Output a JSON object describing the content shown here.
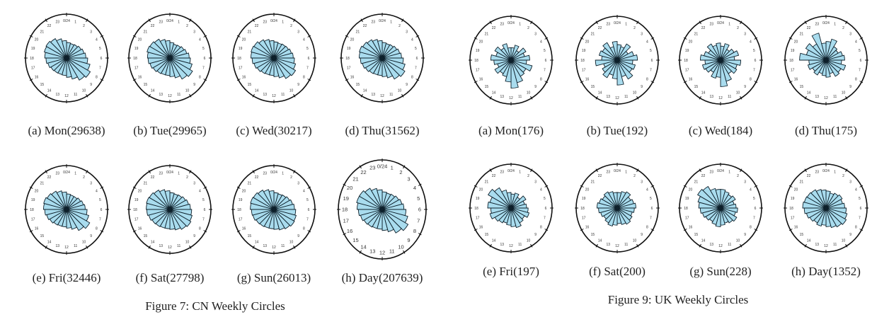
{
  "figures": [
    {
      "id": "cn",
      "caption": "Figure 7: CN Weekly Circles",
      "panels": [
        {
          "label": "(a) Mon(29638)"
        },
        {
          "label": "(b) Tue(29965)"
        },
        {
          "label": "(c) Wed(30217)"
        },
        {
          "label": "(d) Thu(31562)"
        },
        {
          "label": "(e) Fri(32446)"
        },
        {
          "label": "(f) Sat(27798)"
        },
        {
          "label": "(g) Sun(26013)"
        },
        {
          "label": "(h) Day(207639)"
        }
      ]
    },
    {
      "id": "uk",
      "caption": "Figure 9: UK Weekly Circles",
      "panels": [
        {
          "label": "(a) Mon(176)"
        },
        {
          "label": "(b) Tue(192)"
        },
        {
          "label": "(c) Wed(184)"
        },
        {
          "label": "(d) Thu(175)"
        },
        {
          "label": "(e) Fri(197)"
        },
        {
          "label": "(f) Sat(200)"
        },
        {
          "label": "(g) Sun(228)"
        },
        {
          "label": "(h) Day(1352)"
        }
      ]
    }
  ],
  "chart_data": [
    {
      "type": "rose",
      "figure": "cn",
      "hour_labels": [
        "0/24",
        "1",
        "2",
        "3",
        "4",
        "5",
        "6",
        "7",
        "8",
        "9",
        "10",
        "11",
        "12",
        "13",
        "14",
        "15",
        "16",
        "17",
        "18",
        "19",
        "20",
        "21",
        "22",
        "23"
      ],
      "bar_color": "#a9dcee",
      "series": [
        {
          "name": "Mon",
          "values": [
            0.5,
            0.48,
            0.5,
            0.54,
            0.58,
            0.62,
            0.68,
            0.78,
            0.88,
            0.82,
            0.7,
            0.62,
            0.56,
            0.55,
            0.56,
            0.58,
            0.62,
            0.66,
            0.7,
            0.74,
            0.76,
            0.72,
            0.64,
            0.56
          ]
        },
        {
          "name": "Tue",
          "values": [
            0.5,
            0.46,
            0.48,
            0.52,
            0.56,
            0.62,
            0.66,
            0.74,
            0.84,
            0.78,
            0.66,
            0.6,
            0.56,
            0.56,
            0.58,
            0.62,
            0.66,
            0.7,
            0.72,
            0.76,
            0.74,
            0.7,
            0.62,
            0.56
          ]
        },
        {
          "name": "Wed",
          "values": [
            0.52,
            0.5,
            0.52,
            0.54,
            0.58,
            0.62,
            0.66,
            0.72,
            0.8,
            0.76,
            0.66,
            0.6,
            0.56,
            0.56,
            0.58,
            0.62,
            0.66,
            0.7,
            0.74,
            0.76,
            0.74,
            0.68,
            0.62,
            0.56
          ]
        },
        {
          "name": "Thu",
          "values": [
            0.5,
            0.48,
            0.5,
            0.54,
            0.58,
            0.62,
            0.68,
            0.76,
            0.84,
            0.78,
            0.66,
            0.6,
            0.56,
            0.56,
            0.58,
            0.62,
            0.66,
            0.7,
            0.74,
            0.76,
            0.72,
            0.68,
            0.62,
            0.56
          ]
        },
        {
          "name": "Fri",
          "values": [
            0.5,
            0.48,
            0.48,
            0.52,
            0.56,
            0.6,
            0.66,
            0.74,
            0.86,
            0.78,
            0.66,
            0.6,
            0.56,
            0.56,
            0.58,
            0.62,
            0.66,
            0.7,
            0.74,
            0.76,
            0.72,
            0.68,
            0.62,
            0.56
          ]
        },
        {
          "name": "Sat",
          "values": [
            0.54,
            0.52,
            0.54,
            0.58,
            0.62,
            0.66,
            0.7,
            0.74,
            0.78,
            0.74,
            0.68,
            0.64,
            0.62,
            0.62,
            0.64,
            0.66,
            0.7,
            0.74,
            0.76,
            0.78,
            0.76,
            0.72,
            0.66,
            0.6
          ]
        },
        {
          "name": "Sun",
          "values": [
            0.54,
            0.52,
            0.54,
            0.58,
            0.62,
            0.66,
            0.7,
            0.74,
            0.76,
            0.72,
            0.68,
            0.64,
            0.62,
            0.62,
            0.64,
            0.66,
            0.7,
            0.72,
            0.76,
            0.78,
            0.76,
            0.72,
            0.66,
            0.6
          ]
        },
        {
          "name": "Day",
          "values": [
            0.52,
            0.5,
            0.52,
            0.56,
            0.6,
            0.64,
            0.7,
            0.78,
            0.88,
            0.8,
            0.68,
            0.62,
            0.58,
            0.58,
            0.6,
            0.62,
            0.66,
            0.7,
            0.74,
            0.78,
            0.78,
            0.72,
            0.64,
            0.58
          ]
        }
      ]
    },
    {
      "type": "rose",
      "figure": "uk",
      "hour_labels": [
        "0/24",
        "1",
        "2",
        "3",
        "4",
        "5",
        "6",
        "7",
        "8",
        "9",
        "10",
        "11",
        "12",
        "13",
        "14",
        "15",
        "16",
        "17",
        "18",
        "19",
        "20",
        "21",
        "22",
        "23"
      ],
      "bar_color": "#a9dcee",
      "series": [
        {
          "name": "Mon",
          "values": [
            0.4,
            0.5,
            0.35,
            0.55,
            0.45,
            0.6,
            0.5,
            0.7,
            0.55,
            0.6,
            0.75,
            0.9,
            0.7,
            0.55,
            0.5,
            0.6,
            0.45,
            0.55,
            0.65,
            0.5,
            0.6,
            0.45,
            0.55,
            0.4
          ]
        },
        {
          "name": "Tue",
          "values": [
            0.5,
            0.45,
            0.6,
            0.4,
            0.55,
            0.65,
            0.5,
            0.6,
            0.55,
            0.7,
            0.55,
            0.8,
            0.6,
            0.5,
            0.65,
            0.55,
            0.45,
            0.7,
            0.5,
            0.6,
            0.55,
            0.65,
            0.45,
            0.6
          ]
        },
        {
          "name": "Wed",
          "values": [
            0.45,
            0.55,
            0.4,
            0.5,
            0.6,
            0.45,
            0.65,
            0.55,
            0.6,
            0.5,
            0.7,
            0.85,
            0.55,
            0.6,
            0.45,
            0.55,
            0.6,
            0.5,
            0.65,
            0.55,
            0.45,
            0.6,
            0.5,
            0.55
          ]
        },
        {
          "name": "Thu",
          "values": [
            0.6,
            0.7,
            0.5,
            0.45,
            0.55,
            0.6,
            0.5,
            0.65,
            0.55,
            0.6,
            0.45,
            0.55,
            0.5,
            0.45,
            0.55,
            0.5,
            0.6,
            0.55,
            0.85,
            0.65,
            0.75,
            0.6,
            0.9,
            0.55
          ]
        },
        {
          "name": "Fri",
          "values": [
            0.45,
            0.5,
            0.4,
            0.55,
            0.45,
            0.5,
            0.55,
            0.6,
            0.5,
            0.55,
            0.65,
            0.6,
            0.55,
            0.5,
            0.55,
            0.6,
            0.7,
            0.65,
            0.75,
            0.7,
            0.85,
            0.75,
            0.6,
            0.5
          ]
        },
        {
          "name": "Sat",
          "values": [
            0.5,
            0.55,
            0.6,
            0.5,
            0.55,
            0.6,
            0.55,
            0.5,
            0.55,
            0.6,
            0.55,
            0.5,
            0.55,
            0.6,
            0.55,
            0.5,
            0.55,
            0.6,
            0.65,
            0.6,
            0.55,
            0.6,
            0.55,
            0.5
          ]
        },
        {
          "name": "Sun",
          "values": [
            0.6,
            0.55,
            0.5,
            0.55,
            0.45,
            0.5,
            0.55,
            0.5,
            0.6,
            0.55,
            0.5,
            0.55,
            0.6,
            0.55,
            0.5,
            0.55,
            0.6,
            0.65,
            0.7,
            0.75,
            0.85,
            0.8,
            0.65,
            0.6
          ]
        },
        {
          "name": "Day",
          "values": [
            0.55,
            0.5,
            0.55,
            0.6,
            0.55,
            0.6,
            0.65,
            0.7,
            0.75,
            0.7,
            0.65,
            0.6,
            0.55,
            0.6,
            0.55,
            0.6,
            0.65,
            0.7,
            0.75,
            0.72,
            0.7,
            0.68,
            0.62,
            0.58
          ]
        }
      ]
    }
  ]
}
